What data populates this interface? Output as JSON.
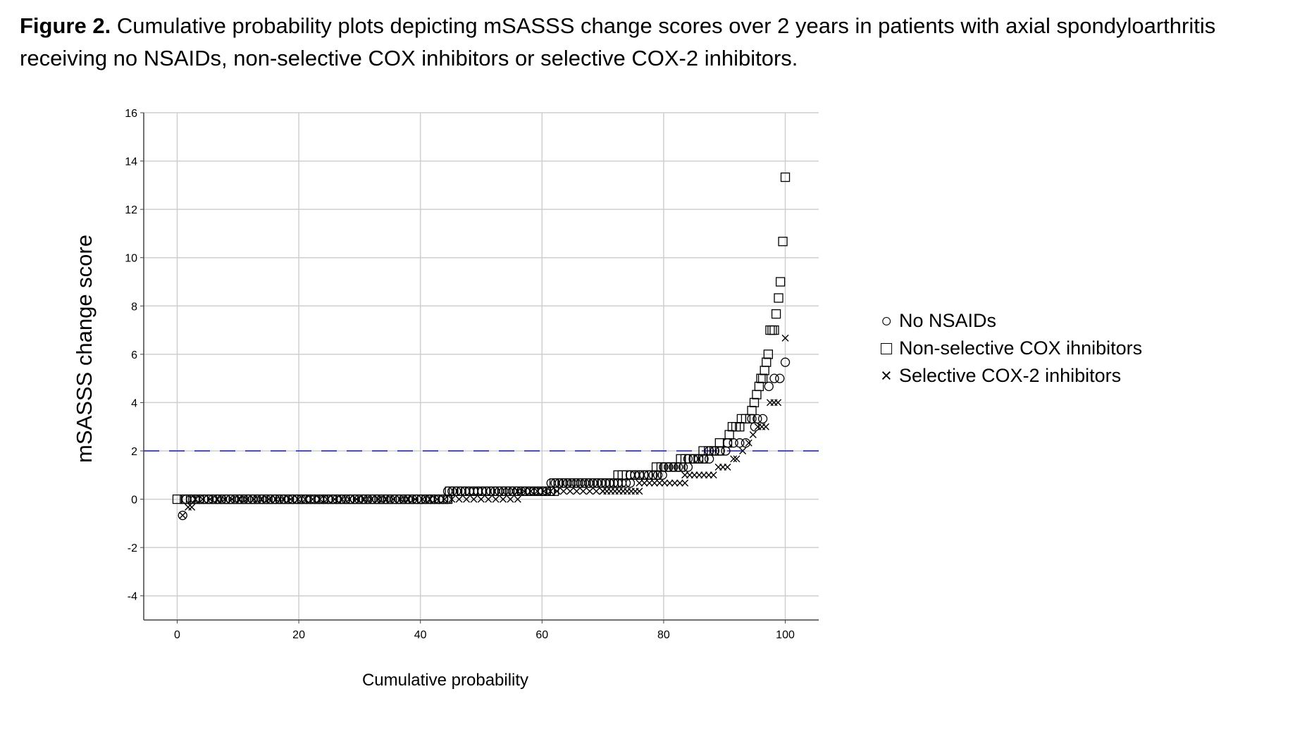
{
  "caption": {
    "label": "Figure 2.",
    "text": " Cumulative probability plots depicting mSASSS change scores over 2 years in patients with axial spondyloarthritis receiving no NSAIDs, non-selective COX inhibitors or selective COX-2 inhibitors."
  },
  "chart_data": {
    "type": "scatter",
    "title": "",
    "xlabel": "Cumulative probability",
    "ylabel": "mSASSS change score",
    "xlim": [
      -5.5,
      105.5
    ],
    "ylim": [
      -5,
      16
    ],
    "xticks": [
      0,
      20,
      40,
      60,
      80,
      100
    ],
    "yticks": [
      -4,
      -2,
      0,
      2,
      4,
      6,
      8,
      10,
      12,
      14,
      16
    ],
    "grid": true,
    "reference_line": {
      "y": 2,
      "style": "dashed",
      "color": "#4a4adf"
    },
    "legend_position": "right",
    "series": [
      {
        "name": "No NSAIDs",
        "marker": "circle",
        "steps": [
          {
            "x0": 0.9,
            "x1": 0.9,
            "y": -0.67,
            "n": 1
          },
          {
            "x0": 1.5,
            "x1": 44.5,
            "y": 0,
            "n": 60
          },
          {
            "x0": 44.5,
            "x1": 61.5,
            "y": 0.33,
            "n": 25
          },
          {
            "x0": 61.5,
            "x1": 74.5,
            "y": 0.67,
            "n": 20
          },
          {
            "x0": 74.5,
            "x1": 79.8,
            "y": 1,
            "n": 8
          },
          {
            "x0": 80,
            "x1": 84,
            "y": 1.33,
            "n": 6
          },
          {
            "x0": 84,
            "x1": 87.5,
            "y": 1.67,
            "n": 5
          },
          {
            "x0": 87.5,
            "x1": 90.2,
            "y": 2,
            "n": 4
          },
          {
            "x0": 90.5,
            "x1": 93.5,
            "y": 2.33,
            "n": 4
          },
          {
            "x0": 94.5,
            "x1": 96.3,
            "y": 3.33,
            "n": 3
          },
          {
            "x0": 95.0,
            "x1": 95.0,
            "y": 3.0,
            "n": 1
          },
          {
            "x0": 97.3,
            "x1": 97.3,
            "y": 4.67,
            "n": 1
          },
          {
            "x0": 98.2,
            "x1": 99.1,
            "y": 5.0,
            "n": 2
          },
          {
            "x0": 100,
            "x1": 100,
            "y": 5.67,
            "n": 1
          }
        ]
      },
      {
        "name": "Non-selective COX ihnibitors",
        "marker": "square",
        "steps": [
          {
            "x0": 0,
            "x1": 1.2,
            "y": 0,
            "n": 2
          },
          {
            "x0": 1.5,
            "x1": 44.5,
            "y": 0,
            "n": 62
          },
          {
            "x0": 44.8,
            "x1": 62,
            "y": 0.33,
            "n": 27
          },
          {
            "x0": 62,
            "x1": 72.5,
            "y": 0.67,
            "n": 17
          },
          {
            "x0": 72.5,
            "x1": 78.8,
            "y": 1,
            "n": 10
          },
          {
            "x0": 78.8,
            "x1": 82.8,
            "y": 1.33,
            "n": 6
          },
          {
            "x0": 82.8,
            "x1": 86.5,
            "y": 1.67,
            "n": 6
          },
          {
            "x0": 86.5,
            "x1": 89.2,
            "y": 2,
            "n": 4
          },
          {
            "x0": 89.2,
            "x1": 90.5,
            "y": 2.33,
            "n": 2
          },
          {
            "x0": 90.8,
            "x1": 90.8,
            "y": 2.67,
            "n": 1
          },
          {
            "x0": 91.3,
            "x1": 92.5,
            "y": 3.0,
            "n": 3
          },
          {
            "x0": 92.8,
            "x1": 94.2,
            "y": 3.33,
            "n": 3
          },
          {
            "x0": 94.5,
            "x1": 94.5,
            "y": 3.67,
            "n": 1
          },
          {
            "x0": 94.9,
            "x1": 94.9,
            "y": 4.0,
            "n": 1
          },
          {
            "x0": 95.3,
            "x1": 95.3,
            "y": 4.33,
            "n": 1
          },
          {
            "x0": 95.7,
            "x1": 95.7,
            "y": 4.67,
            "n": 1
          },
          {
            "x0": 96.0,
            "x1": 96.3,
            "y": 5.0,
            "n": 2
          },
          {
            "x0": 96.6,
            "x1": 96.6,
            "y": 5.33,
            "n": 1
          },
          {
            "x0": 96.9,
            "x1": 96.9,
            "y": 5.67,
            "n": 1
          },
          {
            "x0": 97.2,
            "x1": 97.2,
            "y": 6.0,
            "n": 1
          },
          {
            "x0": 97.5,
            "x1": 98.2,
            "y": 7.0,
            "n": 3
          },
          {
            "x0": 98.5,
            "x1": 98.5,
            "y": 7.67,
            "n": 1
          },
          {
            "x0": 98.9,
            "x1": 98.9,
            "y": 8.33,
            "n": 1
          },
          {
            "x0": 99.2,
            "x1": 99.2,
            "y": 9.0,
            "n": 1
          },
          {
            "x0": 99.6,
            "x1": 99.6,
            "y": 10.67,
            "n": 1
          },
          {
            "x0": 100,
            "x1": 100,
            "y": 13.33,
            "n": 1
          }
        ]
      },
      {
        "name": "Selective COX-2 inhibitors",
        "marker": "x",
        "steps": [
          {
            "x0": 0.9,
            "x1": 0.9,
            "y": -0.67,
            "n": 1
          },
          {
            "x0": 1.8,
            "x1": 2.4,
            "y": -0.33,
            "n": 2
          },
          {
            "x0": 3,
            "x1": 56,
            "y": 0,
            "n": 45
          },
          {
            "x0": 56,
            "x1": 70,
            "y": 0.33,
            "n": 14
          },
          {
            "x0": 70,
            "x1": 76,
            "y": 0.33,
            "n": 10
          },
          {
            "x0": 76,
            "x1": 83.5,
            "y": 0.67,
            "n": 10
          },
          {
            "x0": 83.5,
            "x1": 88.2,
            "y": 1.0,
            "n": 7
          },
          {
            "x0": 89,
            "x1": 90.5,
            "y": 1.33,
            "n": 3
          },
          {
            "x0": 91.5,
            "x1": 92,
            "y": 1.67,
            "n": 2
          },
          {
            "x0": 93,
            "x1": 93,
            "y": 2.0,
            "n": 1
          },
          {
            "x0": 94,
            "x1": 94,
            "y": 2.33,
            "n": 1
          },
          {
            "x0": 94.7,
            "x1": 94.7,
            "y": 2.67,
            "n": 1
          },
          {
            "x0": 95.5,
            "x1": 96.8,
            "y": 3.0,
            "n": 3
          },
          {
            "x0": 97.5,
            "x1": 98.8,
            "y": 4.0,
            "n": 3
          },
          {
            "x0": 100,
            "x1": 100,
            "y": 6.67,
            "n": 1
          }
        ]
      }
    ]
  },
  "legend": {
    "items": [
      {
        "symbol": "○",
        "label": "No NSAIDs"
      },
      {
        "symbol": "□",
        "label": "Non-selective COX ihnibitors"
      },
      {
        "symbol": "×",
        "label": "Selective COX-2 inhibitors"
      }
    ]
  }
}
